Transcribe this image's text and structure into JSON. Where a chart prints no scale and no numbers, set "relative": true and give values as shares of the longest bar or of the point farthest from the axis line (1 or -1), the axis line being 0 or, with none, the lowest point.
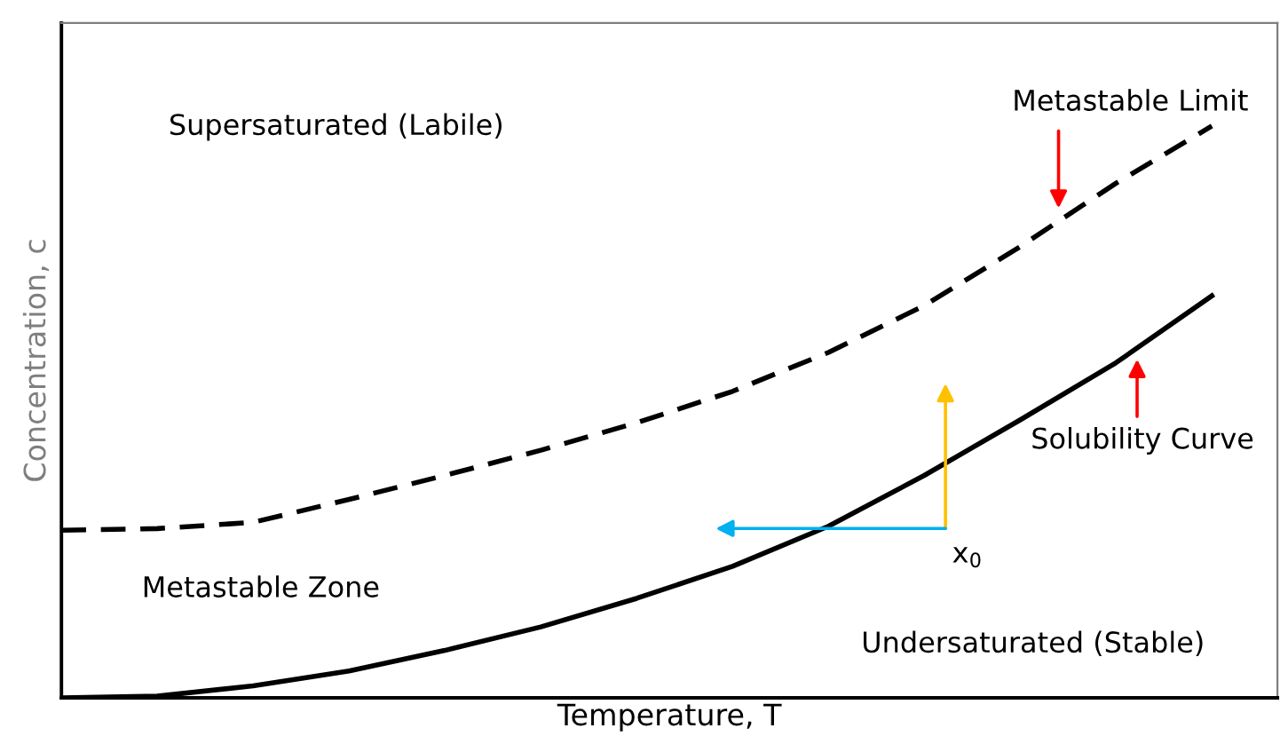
{
  "chart_data": {
    "type": "line",
    "relative": true,
    "xlabel": "Temperature, T",
    "ylabel": "Concentration, c",
    "categories": [
      null,
      null,
      null,
      null,
      null,
      null,
      null,
      null,
      null,
      null,
      null,
      null,
      null
    ],
    "series": [
      {
        "color": "#000000",
        "line_style": "dashed",
        "values": [
          0.293,
          0.296,
          0.307,
          0.347,
          0.389,
          0.433,
          0.481,
          0.536,
          0.604,
          0.686,
          0.789,
          0.9,
          1.0
        ]
      },
      {
        "color": "#000000",
        "line_style": "solid",
        "values": [
          0,
          0.003,
          0.021,
          0.047,
          0.083,
          0.124,
          0.174,
          0.23,
          0.3,
          0.389,
          0.486,
          0.586,
          0.703
        ]
      }
    ],
    "annotations": [
      "Supersaturated (Labile)",
      "Metastable Zone",
      "Undersaturated (Stable)",
      "x$_{0}$",
      "Metastable Limit",
      "Solubility Curve"
    ],
    "tick_labels": false,
    "grid": false,
    "legend": false,
    "marker": "none"
  }
}
